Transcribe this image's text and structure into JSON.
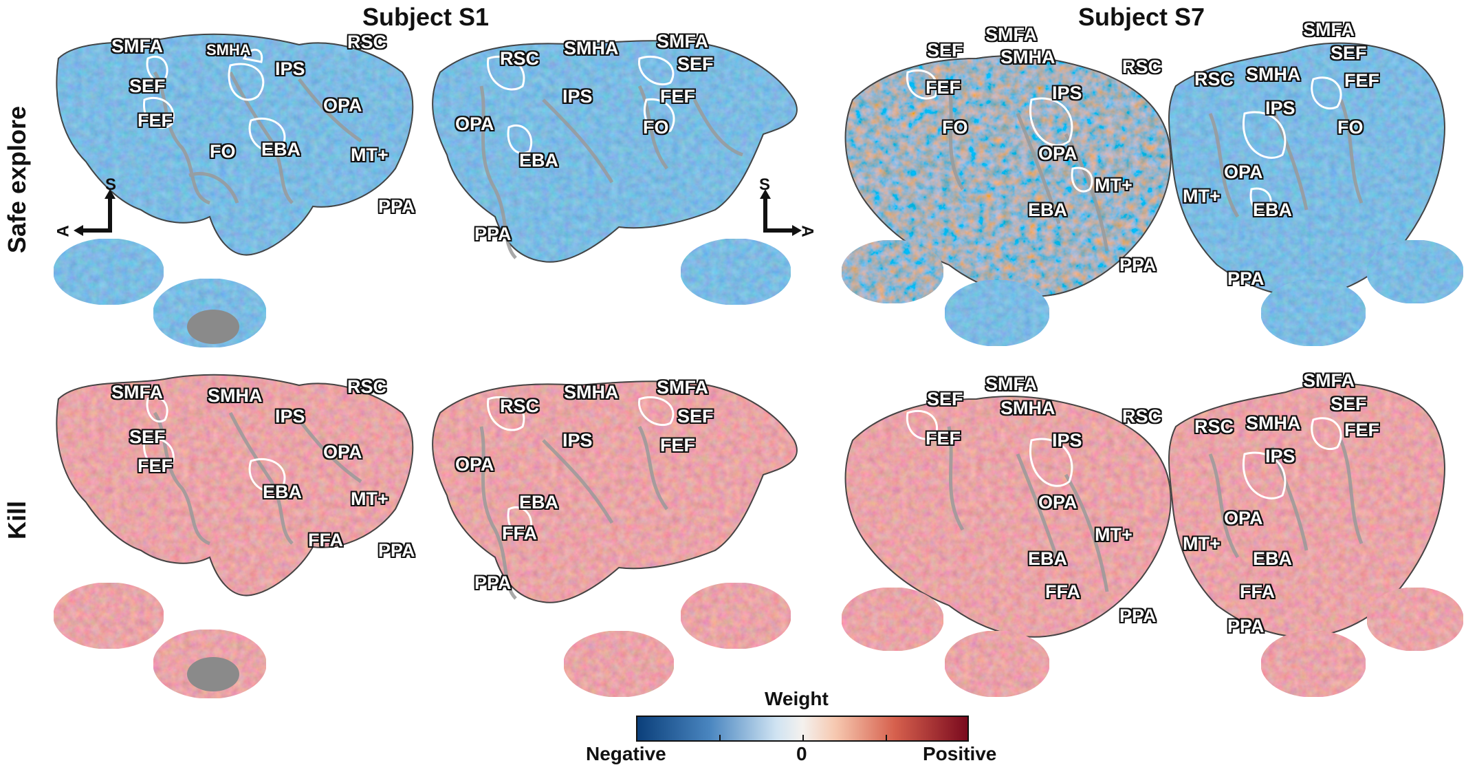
{
  "titles": {
    "s1": "Subject S1",
    "s7": "Subject S7"
  },
  "rows": {
    "safe": "Safe explore",
    "kill": "Kill"
  },
  "compass": {
    "superior": "S",
    "anterior": "A"
  },
  "colorbar": {
    "title": "Weight",
    "neg": "Negative",
    "zero": "0",
    "pos": "Positive",
    "colors": {
      "neg": "#0b3f7a",
      "mid": "#f4f1ee",
      "pos": "#7a0a1e"
    }
  },
  "rois": {
    "s1_safe_left": [
      "SMFA",
      "SMHA",
      "SEF",
      "FEF",
      "FO",
      "IPS",
      "RSC",
      "OPA",
      "EBA",
      "MT+",
      "PPA"
    ],
    "s1_safe_right": [
      "RSC",
      "SMHA",
      "SMFA",
      "SEF",
      "IPS",
      "FEF",
      "OPA",
      "FO",
      "EBA",
      "PPA"
    ],
    "s7_safe_left": [
      "SMFA",
      "SEF",
      "SMHA",
      "FEF",
      "FO",
      "IPS",
      "RSC",
      "OPA",
      "MT+",
      "EBA",
      "PPA"
    ],
    "s7_safe_right": [
      "SMFA",
      "SEF",
      "RSC",
      "SMHA",
      "FEF",
      "IPS",
      "FO",
      "OPA",
      "MT+",
      "EBA",
      "PPA"
    ],
    "s1_kill_left": [
      "SMFA",
      "SMHA",
      "RSC",
      "IPS",
      "SEF",
      "FEF",
      "OPA",
      "EBA",
      "MT+",
      "FFA",
      "PPA"
    ],
    "s1_kill_right": [
      "RSC",
      "SMHA",
      "SMFA",
      "SEF",
      "IPS",
      "FEF",
      "OPA",
      "EBA",
      "FFA",
      "PPA"
    ],
    "s7_kill_left": [
      "SMFA",
      "SEF",
      "SMHA",
      "FEF",
      "IPS",
      "RSC",
      "OPA",
      "MT+",
      "EBA",
      "FFA",
      "PPA"
    ],
    "s7_kill_right": [
      "SMFA",
      "SEF",
      "RSC",
      "SMHA",
      "FEF",
      "IPS",
      "OPA",
      "MT+",
      "EBA",
      "FFA",
      "PPA"
    ]
  }
}
